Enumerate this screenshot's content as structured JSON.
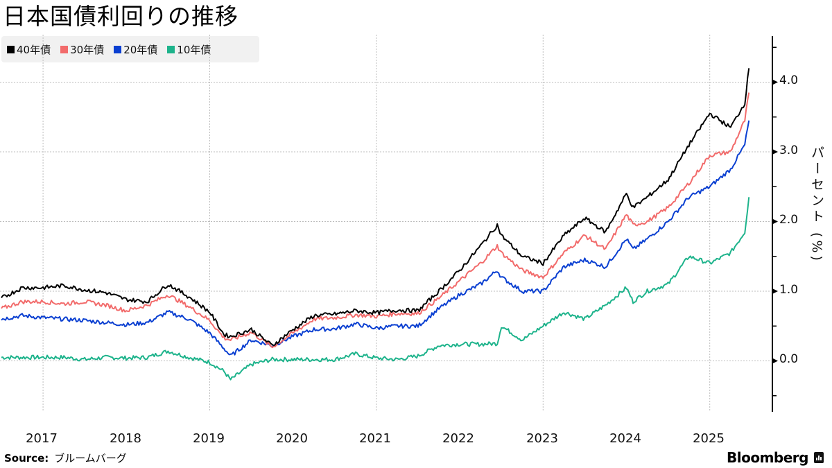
{
  "title": "日本国債利回りの推移",
  "legend": [
    {
      "label": "40年債",
      "color": "#000000"
    },
    {
      "label": "30年債",
      "color": "#f26b6b"
    },
    {
      "label": "20年債",
      "color": "#0a3fd1"
    },
    {
      "label": "10年債",
      "color": "#1db38b"
    }
  ],
  "y_axis_label": "パーセント (%)",
  "source_label": "Source:",
  "source_value": "ブルームバーグ",
  "brand": "Bloomberg",
  "chart_data": {
    "type": "line",
    "title": "日本国債利回りの推移",
    "xlabel": "",
    "ylabel": "パーセント (%)",
    "ylim": [
      -0.75,
      4.65
    ],
    "yticks": [
      0.0,
      1.0,
      2.0,
      3.0,
      4.0
    ],
    "xticks": [
      "2017",
      "2018",
      "2019",
      "2020",
      "2021",
      "2022",
      "2023",
      "2024",
      "2025"
    ],
    "grid": true,
    "legend_position": "top-left",
    "x": [
      2017.0,
      2017.25,
      2017.5,
      2017.75,
      2018.0,
      2018.25,
      2018.5,
      2018.75,
      2019.0,
      2019.25,
      2019.5,
      2019.67,
      2019.75,
      2020.0,
      2020.25,
      2020.5,
      2020.75,
      2021.0,
      2021.25,
      2021.5,
      2021.75,
      2022.0,
      2022.25,
      2022.5,
      2022.75,
      2022.95,
      2023.0,
      2023.25,
      2023.5,
      2023.75,
      2024.0,
      2024.25,
      2024.5,
      2024.58,
      2024.75,
      2025.0,
      2025.25,
      2025.5,
      2025.75,
      2025.92,
      2025.97
    ],
    "series": [
      {
        "name": "40年債",
        "color": "#000000",
        "values": [
          0.9,
          1.05,
          1.05,
          1.08,
          1.02,
          0.98,
          0.88,
          0.85,
          1.1,
          0.92,
          0.7,
          0.38,
          0.35,
          0.45,
          0.22,
          0.45,
          0.65,
          0.67,
          0.72,
          0.69,
          0.73,
          0.72,
          1.0,
          1.3,
          1.65,
          1.95,
          1.8,
          1.5,
          1.4,
          1.8,
          2.05,
          1.85,
          2.4,
          2.2,
          2.35,
          2.6,
          3.1,
          3.55,
          3.35,
          3.7,
          4.2
        ]
      },
      {
        "name": "30年債",
        "color": "#f26b6b",
        "values": [
          0.75,
          0.85,
          0.85,
          0.82,
          0.85,
          0.8,
          0.72,
          0.8,
          0.95,
          0.78,
          0.58,
          0.33,
          0.3,
          0.41,
          0.2,
          0.4,
          0.6,
          0.62,
          0.66,
          0.64,
          0.68,
          0.68,
          0.9,
          1.15,
          1.4,
          1.65,
          1.55,
          1.3,
          1.2,
          1.55,
          1.8,
          1.6,
          2.1,
          1.95,
          2.0,
          2.2,
          2.55,
          2.95,
          3.0,
          3.45,
          3.85
        ]
      },
      {
        "name": "20年債",
        "color": "#0a3fd1",
        "values": [
          0.6,
          0.65,
          0.62,
          0.6,
          0.58,
          0.55,
          0.52,
          0.55,
          0.7,
          0.6,
          0.4,
          0.18,
          0.07,
          0.3,
          0.22,
          0.35,
          0.45,
          0.46,
          0.53,
          0.47,
          0.5,
          0.5,
          0.75,
          0.95,
          1.1,
          1.3,
          1.2,
          1.0,
          1.0,
          1.35,
          1.45,
          1.35,
          1.75,
          1.6,
          1.75,
          2.0,
          2.35,
          2.5,
          2.75,
          3.1,
          3.45
        ]
      },
      {
        "name": "10年債",
        "color": "#1db38b",
        "values": [
          0.05,
          0.05,
          0.05,
          0.05,
          0.02,
          0.05,
          0.04,
          0.05,
          0.14,
          0.05,
          -0.02,
          -0.15,
          -0.27,
          -0.05,
          0.02,
          0.02,
          0.02,
          0.02,
          0.1,
          0.04,
          0.02,
          0.07,
          0.22,
          0.24,
          0.24,
          0.25,
          0.5,
          0.3,
          0.5,
          0.7,
          0.6,
          0.8,
          1.05,
          0.85,
          1.0,
          1.1,
          1.5,
          1.4,
          1.55,
          1.85,
          2.35
        ]
      }
    ]
  }
}
